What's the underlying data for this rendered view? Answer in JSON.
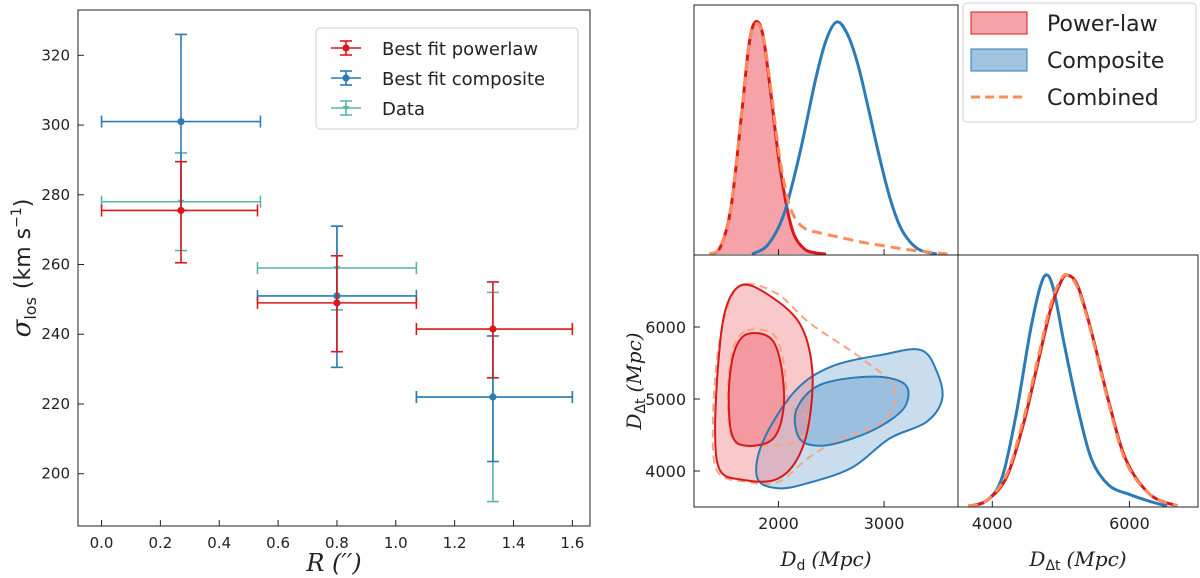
{
  "colors": {
    "powerlaw": "#d7191c",
    "composite": "#2c7bb6",
    "data": "#5ab4ac",
    "combined": "#fc8d59",
    "powerlaw_fill": "#f2848b",
    "composite_fill": "#88b4d8"
  },
  "chart_data": [
    {
      "type": "scatter",
      "panel": "velocity-dispersion",
      "xlabel": "R (′′)",
      "ylabel_symbol": "σ",
      "ylabel_sub": "los",
      "ylabel_unit_pre": "(km s",
      "ylabel_unit_sup": "−1",
      "ylabel_unit_post": ")",
      "xlim": [
        -0.08,
        1.66
      ],
      "ylim": [
        185,
        333
      ],
      "xticks": [
        0.0,
        0.2,
        0.4,
        0.6,
        0.8,
        1.0,
        1.2,
        1.4,
        1.6
      ],
      "xtick_labels": [
        "0.0",
        "0.2",
        "0.4",
        "0.6",
        "0.8",
        "1.0",
        "1.2",
        "1.4",
        "1.6"
      ],
      "yticks": [
        200,
        220,
        240,
        260,
        280,
        300,
        320
      ],
      "ytick_labels": [
        "200",
        "220",
        "240",
        "260",
        "280",
        "300",
        "320"
      ],
      "legend_position": "top-right",
      "series": [
        {
          "name": "Best fit powerlaw",
          "color_key": "powerlaw",
          "points": [
            {
              "x": 0.27,
              "xlo": 0.0,
              "xhi": 0.53,
              "y": 275.5,
              "ylo": 260.5,
              "yhi": 289.5
            },
            {
              "x": 0.8,
              "xlo": 0.53,
              "xhi": 1.07,
              "y": 249.0,
              "ylo": 235.0,
              "yhi": 262.5
            },
            {
              "x": 1.33,
              "xlo": 1.07,
              "xhi": 1.6,
              "y": 241.5,
              "ylo": 227.5,
              "yhi": 255.0
            }
          ]
        },
        {
          "name": "Best fit composite",
          "color_key": "composite",
          "points": [
            {
              "x": 0.27,
              "xlo": 0.0,
              "xhi": 0.54,
              "y": 301.0,
              "ylo": 275.5,
              "yhi": 326.0
            },
            {
              "x": 0.8,
              "xlo": 0.53,
              "xhi": 1.07,
              "y": 251.0,
              "ylo": 230.5,
              "yhi": 271.0
            },
            {
              "x": 1.33,
              "xlo": 1.07,
              "xhi": 1.6,
              "y": 222.0,
              "ylo": 203.5,
              "yhi": 239.5
            }
          ]
        },
        {
          "name": "Data",
          "color_key": "data",
          "points": [
            {
              "x": 0.27,
              "xlo": 0.0,
              "xhi": 0.54,
              "y": 278.0,
              "ylo": 264.0,
              "yhi": 292.0
            },
            {
              "x": 0.8,
              "xlo": 0.53,
              "xhi": 1.07,
              "y": 259.0,
              "ylo": 247.0,
              "yhi": 271.0
            },
            {
              "x": 1.33,
              "xlo": 1.07,
              "xhi": 1.6,
              "y": 222.0,
              "ylo": 192.0,
              "yhi": 252.0
            }
          ]
        }
      ]
    },
    {
      "type": "line",
      "panel": "Dd-marginal",
      "xlim": [
        1200,
        3700
      ],
      "xticks": [
        2000,
        3000
      ],
      "series": [
        {
          "name": "Power-law",
          "color_key": "powerlaw",
          "style": "filled",
          "x": [
            1350,
            1450,
            1550,
            1650,
            1720,
            1780,
            1850,
            1920,
            2000,
            2080,
            2150,
            2250,
            2350,
            2450
          ],
          "y": [
            0.0,
            0.03,
            0.2,
            0.6,
            0.9,
            1.0,
            0.95,
            0.72,
            0.42,
            0.2,
            0.08,
            0.02,
            0.005,
            0.0
          ]
        },
        {
          "name": "Composite",
          "color_key": "composite",
          "style": "line",
          "x": [
            1750,
            1900,
            2050,
            2200,
            2350,
            2450,
            2550,
            2650,
            2750,
            2850,
            2950,
            3050,
            3150,
            3250,
            3350,
            3500
          ],
          "y": [
            0.0,
            0.04,
            0.17,
            0.43,
            0.75,
            0.92,
            1.0,
            0.95,
            0.82,
            0.63,
            0.43,
            0.25,
            0.12,
            0.05,
            0.015,
            0.0
          ]
        },
        {
          "name": "Combined",
          "color_key": "combined",
          "style": "dashed",
          "x": [
            1350,
            1450,
            1550,
            1650,
            1720,
            1780,
            1850,
            1920,
            2000,
            2080,
            2150,
            2250,
            2400,
            2600,
            2800,
            3000,
            3200,
            3400,
            3600
          ],
          "y": [
            0.0,
            0.03,
            0.2,
            0.6,
            0.9,
            0.99,
            0.95,
            0.74,
            0.45,
            0.25,
            0.16,
            0.11,
            0.09,
            0.07,
            0.05,
            0.035,
            0.02,
            0.01,
            0.0
          ]
        }
      ]
    },
    {
      "type": "scatter",
      "panel": "joint-contours",
      "xlabel_main": "D",
      "xlabel_sub": "d",
      "xlabel_unit": "(Mpc)",
      "ylabel_main": "D",
      "ylabel_sub": "Δt",
      "ylabel_unit": "(Mpc)",
      "xlim": [
        1200,
        3700
      ],
      "ylim": [
        3500,
        7000
      ],
      "xticks": [
        2000,
        3000
      ],
      "xtick_labels": [
        "2000",
        "3000"
      ],
      "yticks": [
        4000,
        5000,
        6000
      ],
      "ytick_labels": [
        "4000",
        "5000",
        "6000"
      ],
      "contours": [
        {
          "name": "powerlaw-outer",
          "color_key": "powerlaw",
          "level": "2σ",
          "points": [
            [
              1650,
              6580
            ],
            [
              1900,
              6450
            ],
            [
              2200,
              6050
            ],
            [
              2320,
              5400
            ],
            [
              2280,
              4600
            ],
            [
              2150,
              4100
            ],
            [
              1950,
              3870
            ],
            [
              1650,
              3880
            ],
            [
              1450,
              4000
            ],
            [
              1400,
              4500
            ],
            [
              1430,
              5500
            ],
            [
              1500,
              6250
            ]
          ]
        },
        {
          "name": "powerlaw-inner",
          "color_key": "powerlaw",
          "level": "1σ",
          "points": [
            [
              1700,
              5900
            ],
            [
              1920,
              5850
            ],
            [
              2020,
              5500
            ],
            [
              2050,
              4900
            ],
            [
              1950,
              4450
            ],
            [
              1700,
              4350
            ],
            [
              1560,
              4500
            ],
            [
              1530,
              5100
            ],
            [
              1580,
              5650
            ]
          ]
        },
        {
          "name": "composite-outer",
          "color_key": "composite",
          "level": "2σ",
          "points": [
            [
              2150,
              5100
            ],
            [
              2500,
              5450
            ],
            [
              3000,
              5620
            ],
            [
              3350,
              5680
            ],
            [
              3500,
              5380
            ],
            [
              3550,
              5000
            ],
            [
              3400,
              4680
            ],
            [
              3050,
              4450
            ],
            [
              2700,
              4050
            ],
            [
              2300,
              3840
            ],
            [
              2000,
              3760
            ],
            [
              1800,
              3900
            ],
            [
              1850,
              4400
            ]
          ]
        },
        {
          "name": "composite-inner",
          "color_key": "composite",
          "level": "1σ",
          "points": [
            [
              2400,
              5200
            ],
            [
              2900,
              5310
            ],
            [
              3200,
              5200
            ],
            [
              3200,
              4900
            ],
            [
              3000,
              4650
            ],
            [
              2700,
              4450
            ],
            [
              2400,
              4350
            ],
            [
              2200,
              4450
            ],
            [
              2170,
              4850
            ]
          ]
        },
        {
          "name": "combined-outer",
          "color_key": "combined",
          "level": "2σ",
          "dashed": true,
          "points": [
            [
              1700,
              6600
            ],
            [
              2000,
              6450
            ],
            [
              2300,
              6050
            ],
            [
              2800,
              5550
            ],
            [
              3100,
              5150
            ],
            [
              3000,
              4700
            ],
            [
              2600,
              4450
            ],
            [
              2300,
              4200
            ],
            [
              2000,
              3850
            ],
            [
              1700,
              3850
            ],
            [
              1420,
              4000
            ],
            [
              1380,
              4700
            ],
            [
              1430,
              5700
            ],
            [
              1550,
              6400
            ]
          ]
        },
        {
          "name": "combined-inner",
          "color_key": "combined",
          "level": "1σ",
          "dashed": true,
          "points": [
            [
              1700,
              5950
            ],
            [
              1950,
              5900
            ],
            [
              2050,
              5500
            ],
            [
              2100,
              4950
            ],
            [
              2300,
              4700
            ],
            [
              2150,
              4400
            ],
            [
              1700,
              4350
            ],
            [
              1550,
              4500
            ],
            [
              1520,
              5100
            ],
            [
              1570,
              5700
            ]
          ]
        }
      ]
    },
    {
      "type": "line",
      "panel": "Ddt-marginal",
      "xlabel_main": "D",
      "xlabel_sub": "Δt",
      "xlabel_unit": "(Mpc)",
      "xlim": [
        3500,
        7000
      ],
      "xticks": [
        4000,
        6000
      ],
      "xtick_labels": [
        "4000",
        "6000"
      ],
      "series": [
        {
          "name": "Power-law",
          "color_key": "powerlaw",
          "style": "line",
          "x": [
            3650,
            3900,
            4200,
            4450,
            4650,
            4850,
            5000,
            5100,
            5250,
            5450,
            5700,
            5950,
            6300,
            6700
          ],
          "y": [
            0.0,
            0.02,
            0.12,
            0.35,
            0.6,
            0.85,
            0.97,
            1.0,
            0.95,
            0.75,
            0.45,
            0.2,
            0.05,
            0.0
          ]
        },
        {
          "name": "Composite",
          "color_key": "composite",
          "style": "line",
          "x": [
            3700,
            3950,
            4150,
            4350,
            4550,
            4700,
            4800,
            4900,
            5050,
            5250,
            5450,
            5700,
            6000,
            6300,
            6550
          ],
          "y": [
            0.0,
            0.03,
            0.13,
            0.4,
            0.75,
            0.95,
            1.0,
            0.93,
            0.7,
            0.42,
            0.2,
            0.09,
            0.05,
            0.02,
            0.0
          ]
        },
        {
          "name": "Combined",
          "color_key": "combined",
          "style": "dashed",
          "x": [
            3650,
            3900,
            4200,
            4450,
            4650,
            4850,
            5000,
            5100,
            5250,
            5450,
            5700,
            5950,
            6300,
            6700
          ],
          "y": [
            0.0,
            0.02,
            0.13,
            0.37,
            0.62,
            0.87,
            0.98,
            1.0,
            0.94,
            0.74,
            0.44,
            0.19,
            0.05,
            0.0
          ]
        }
      ]
    }
  ],
  "legend_right": [
    {
      "label": "Power-law",
      "color_key": "powerlaw",
      "kind": "patch-red"
    },
    {
      "label": "Composite",
      "color_key": "composite",
      "kind": "patch-blue"
    },
    {
      "label": "Combined",
      "color_key": "combined",
      "kind": "dashed"
    }
  ]
}
